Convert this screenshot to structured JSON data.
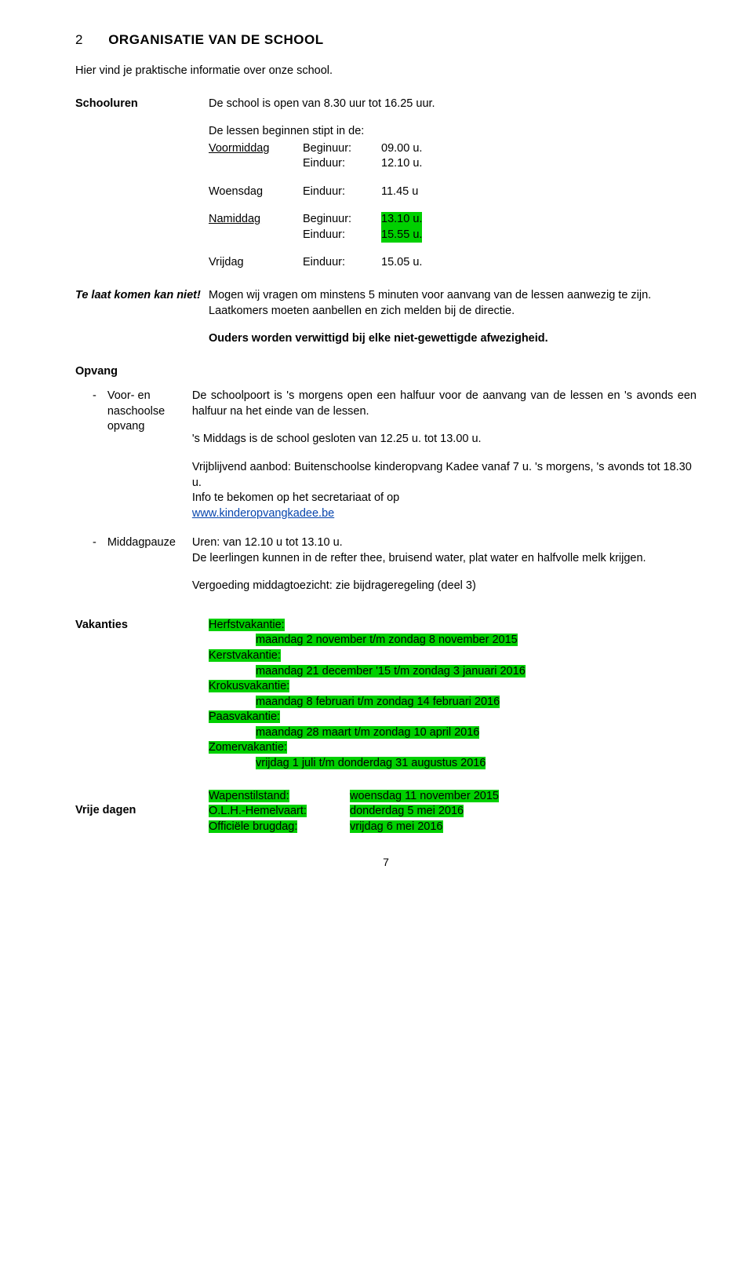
{
  "section": {
    "number": "2",
    "title": "ORGANISATIE VAN DE SCHOOL"
  },
  "intro": "Hier vind je praktische informatie over onze school.",
  "schooluren": {
    "label": "Schooluren",
    "line1": "De school is open van 8.30 uur tot 16.25 uur.",
    "intro2": "De lessen beginnen stipt in de:",
    "voormiddag_label": "Voormiddag",
    "voormiddag_begin_key": "Beginuur:",
    "voormiddag_begin_val": "09.00 u.",
    "voormiddag_eind_key": "Einduur:",
    "voormiddag_eind_val": "12.10 u.",
    "woensdag_label": "Woensdag",
    "woensdag_key": "Einduur:",
    "woensdag_val": "11.45 u",
    "namiddag_label": "Namiddag",
    "namiddag_begin_key": "Beginuur:",
    "namiddag_begin_val": "13.10 u.",
    "namiddag_eind_key": "Einduur:",
    "namiddag_eind_val": "15.55 u.",
    "vrijdag_label": "Vrijdag",
    "vrijdag_key": "Einduur:",
    "vrijdag_val": "15.05 u."
  },
  "telaat": {
    "label": "Te laat komen kan niet!",
    "p1": "Mogen wij vragen om minstens 5 minuten voor aanvang van de lessen aanwezig te zijn.",
    "p2": "Laatkomers moeten aanbellen en zich melden bij de directie.",
    "p3": "Ouders worden verwittigd bij elke niet-gewettigde afwezigheid."
  },
  "opvang": {
    "label": "Opvang",
    "i1_bullet": "-",
    "i1_label": "Voor- en naschoolse opvang",
    "i1_p1": "De schoolpoort is 's morgens open een halfuur voor de aanvang van de lessen en 's avonds een halfuur na het einde van de lessen.",
    "i1_p2": "'s Middags is de school gesloten van 12.25 u. tot 13.00 u.",
    "i1_p3a": "Vrijblijvend aanbod: Buitenschoolse kinderopvang Kadee vanaf 7 u. 's morgens,  's avonds tot 18.30 u.",
    "i1_p3b": "Info te bekomen op het secretariaat of  op",
    "i1_link": "www.kinderopvangkadee.be",
    "i2_bullet": "-",
    "i2_label": "Middagpauze",
    "i2_p1": "Uren: van 12.10 u tot 13.10 u.",
    "i2_p2": "De leerlingen kunnen in de refter thee, bruisend water, plat water en halfvolle melk krijgen.",
    "i2_p3": "Vergoeding middagtoezicht: zie bijdrageregeling (deel 3)"
  },
  "vakanties": {
    "label": "Vakanties",
    "items": [
      {
        "name": "Herfstvakantie:",
        "dates": "maandag 2 november t/m zondag 8  november 2015"
      },
      {
        "name": "Kerstvakantie:",
        "dates": "maandag 21 december '15 t/m zondag 3 januari 2016"
      },
      {
        "name": "Krokusvakantie:",
        "dates": "maandag 8 februari t/m zondag 14 februari 2016"
      },
      {
        "name": "Paasvakantie:",
        "dates": "maandag 28 maart t/m zondag 10 april 2016"
      },
      {
        "name": "Zomervakantie:",
        "dates": "vrijdag 1 juli t/m donderdag 31 augustus 2016"
      }
    ]
  },
  "vrijedagen": {
    "label": "Vrije dagen",
    "rows": [
      {
        "key": "Wapenstilstand:",
        "val": "woensdag 11 november 2015"
      },
      {
        "key": "O.L.H.-Hemelvaart:",
        "val": "donderdag 5 mei 2016"
      },
      {
        "key": "Officiële brugdag:",
        "val": "vrijdag 6 mei 2016"
      }
    ]
  },
  "pagenum": "7",
  "highlight_color": "#00d000"
}
